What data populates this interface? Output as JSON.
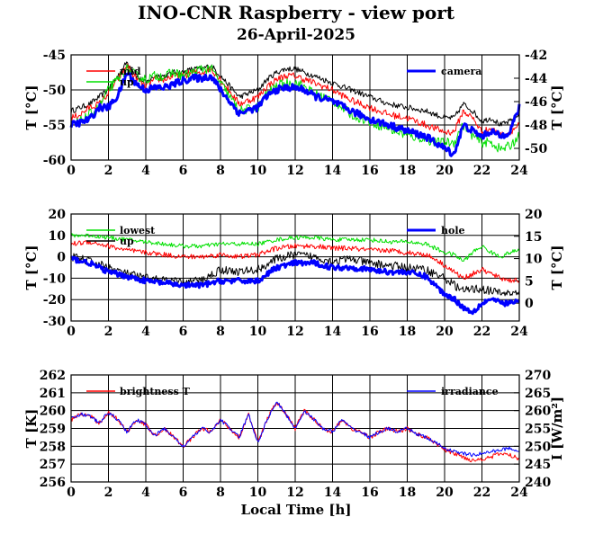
{
  "chart_data": {
    "type": "line",
    "title": "INO-CNR Raspberry - view port",
    "subtitle": "26-April-2025",
    "xlabel": "Local Time [h]",
    "panels": [
      {
        "id": "panel-1",
        "ylabel_left": "T [°C]",
        "ylabel_right": "T [°C]",
        "xlim": [
          0,
          24
        ],
        "ylim_left": [
          -60,
          -45
        ],
        "ylim_right": [
          -51,
          -42
        ],
        "xticks": [
          "0",
          "2",
          "4",
          "6",
          "8",
          "10",
          "12",
          "14",
          "16",
          "18",
          "20",
          "22",
          "24"
        ],
        "yticks_left": [
          "-60",
          "-55",
          "-50",
          "-45"
        ],
        "yticks_right": [
          "-50",
          "-48",
          "-46",
          "-44",
          "-42"
        ],
        "legend_left": [
          "mid",
          "up"
        ],
        "legend_right": [
          "camera"
        ],
        "series": [
          {
            "name": "",
            "axis": "left",
            "color": "#000000",
            "noise": 0.4,
            "x": [
              0,
              0.5,
              1,
              1.5,
              2,
              2.5,
              3,
              3.5,
              4,
              4.5,
              5,
              5.5,
              6,
              6.5,
              7,
              7.5,
              8,
              9,
              10,
              10.5,
              11,
              11.5,
              12,
              12.5,
              13,
              14,
              15,
              16,
              17,
              18,
              19,
              19.5,
              20,
              20.5,
              21,
              21.5,
              22,
              22.5,
              23,
              23.5,
              24
            ],
            "y": [
              -53,
              -52.5,
              -52,
              -51,
              -50,
              -48,
              -46,
              -48,
              -49,
              -48,
              -48,
              -47.5,
              -47.5,
              -47,
              -47,
              -46.5,
              -48,
              -51,
              -50,
              -48.5,
              -47.5,
              -47,
              -47,
              -47.5,
              -48,
              -49,
              -50,
              -51,
              -52,
              -52.5,
              -53,
              -53.5,
              -54,
              -54,
              -52,
              -53,
              -54.5,
              -54,
              -55,
              -54.5,
              -53.5
            ]
          },
          {
            "name": "mid",
            "axis": "left",
            "color": "#ff0000",
            "noise": 0.5,
            "x": [
              0,
              0.5,
              1,
              1.5,
              2,
              2.5,
              3,
              3.5,
              4,
              4.5,
              5,
              5.5,
              6,
              6.5,
              7,
              7.5,
              8,
              9,
              10,
              10.5,
              11,
              11.5,
              12,
              12.5,
              13,
              14,
              15,
              16,
              17,
              18,
              19,
              19.5,
              20,
              20.5,
              21,
              21.5,
              22,
              22.5,
              23,
              23.5,
              24
            ],
            "y": [
              -54,
              -53.5,
              -52.5,
              -52,
              -50.5,
              -48.5,
              -46.5,
              -48.5,
              -49.5,
              -48.5,
              -48.5,
              -48,
              -48,
              -47.5,
              -47.5,
              -47,
              -48.5,
              -52,
              -51,
              -49.5,
              -48.5,
              -48,
              -48,
              -48.5,
              -49,
              -50,
              -51.5,
              -52.5,
              -53.5,
              -54,
              -55,
              -55.5,
              -56,
              -56,
              -53,
              -54,
              -56,
              -55.5,
              -56.5,
              -56,
              -55
            ]
          },
          {
            "name": "up",
            "axis": "left",
            "color": "#00e000",
            "noise": 0.7,
            "x": [
              0,
              0.5,
              1,
              1.5,
              2,
              2.5,
              3,
              3.5,
              4,
              4.5,
              5,
              5.5,
              6,
              6.5,
              7,
              7.5,
              8,
              9,
              10,
              10.5,
              11,
              11.5,
              12,
              12.5,
              13,
              14,
              15,
              16,
              17,
              18,
              19,
              19.5,
              20,
              20.5,
              21,
              21.5,
              22,
              22.5,
              23,
              23.5,
              24
            ],
            "y": [
              -55,
              -54.5,
              -53.5,
              -52.5,
              -50,
              -48.5,
              -47,
              -48,
              -48.5,
              -48,
              -48,
              -47.5,
              -48,
              -47.5,
              -47,
              -47,
              -49,
              -53,
              -52.5,
              -50.5,
              -49.5,
              -49,
              -49,
              -49.5,
              -50.5,
              -51.5,
              -53.5,
              -54.5,
              -55.5,
              -56.5,
              -57,
              -57.5,
              -57.5,
              -57.5,
              -55,
              -56.5,
              -57.5,
              -57.5,
              -58.5,
              -58,
              -56.5
            ]
          },
          {
            "name": "camera",
            "axis": "right",
            "color": "#0000ff",
            "noise": 0.3,
            "width": 3,
            "x": [
              0,
              0.5,
              1,
              1.5,
              2,
              2.5,
              3,
              3.5,
              4,
              4.5,
              5,
              5.5,
              6,
              6.5,
              7,
              7.5,
              8,
              9,
              10,
              10.5,
              11,
              11.5,
              12,
              12.5,
              13,
              14,
              15,
              16,
              17,
              18,
              19,
              19.5,
              20,
              20.5,
              21,
              21.5,
              22,
              22.5,
              23,
              23.5,
              24
            ],
            "y": [
              -48,
              -47.8,
              -47.5,
              -46.5,
              -46.5,
              -45.5,
              -43.5,
              -44.5,
              -45,
              -44.8,
              -44.8,
              -44.5,
              -44.2,
              -44,
              -44,
              -43.8,
              -45,
              -47,
              -46.5,
              -45.5,
              -45,
              -44.8,
              -44.8,
              -45,
              -45.5,
              -46,
              -46.8,
              -47.5,
              -48,
              -48.5,
              -49,
              -49.5,
              -50,
              -50.5,
              -48,
              -48.5,
              -49,
              -48.5,
              -49,
              -48.5,
              -46.5
            ]
          }
        ]
      },
      {
        "id": "panel-2",
        "ylabel_left": "T [°C]",
        "ylabel_right": "T [°C]",
        "xlim": [
          0,
          24
        ],
        "ylim_left": [
          -30,
          20
        ],
        "ylim_right": [
          -4,
          20
        ],
        "xticks": [
          "0",
          "2",
          "4",
          "6",
          "8",
          "10",
          "12",
          "14",
          "16",
          "18",
          "20",
          "22",
          "24"
        ],
        "yticks_left": [
          "-30",
          "-20",
          "-10",
          "0",
          "10",
          "20"
        ],
        "yticks_right": [
          "0",
          "5",
          "10",
          "15",
          "20"
        ],
        "legend_left": [
          "lowest",
          "up"
        ],
        "legend_right": [
          "hole"
        ],
        "series": [
          {
            "name": "lowest",
            "axis": "left",
            "color": "#00e000",
            "noise": 1.0,
            "x": [
              0,
              1,
              2,
              3,
              4,
              5,
              6,
              7,
              8,
              9,
              10,
              11,
              12,
              13,
              14,
              15,
              16,
              17,
              18,
              19,
              19.5,
              20,
              20.5,
              21,
              21.5,
              22,
              22.5,
              23,
              23.5,
              24
            ],
            "y": [
              10,
              10,
              9,
              8,
              7,
              6,
              5,
              5,
              6,
              6,
              6,
              8,
              9,
              9,
              8,
              8,
              8,
              7,
              7,
              6,
              4,
              2,
              1,
              -2,
              2,
              5,
              2,
              0,
              2,
              3
            ]
          },
          {
            "name": "",
            "axis": "left",
            "color": "#ff0000",
            "noise": 1.2,
            "x": [
              0,
              1,
              2,
              3,
              4,
              5,
              6,
              7,
              8,
              9,
              10,
              11,
              12,
              13,
              14,
              15,
              16,
              17,
              18,
              19,
              19.5,
              20,
              20.5,
              21,
              21.5,
              22,
              22.5,
              23,
              23.5,
              24
            ],
            "y": [
              6,
              7,
              5,
              3,
              2,
              1,
              0,
              0,
              1,
              0,
              1,
              4,
              5,
              5,
              4,
              4,
              3,
              3,
              2,
              1,
              -1,
              -4,
              -7,
              -10,
              -8,
              -6,
              -8,
              -10,
              -11,
              -11
            ]
          },
          {
            "name": "up",
            "axis": "left",
            "color": "#000000",
            "noise": 2.0,
            "x": [
              0,
              1,
              2,
              3,
              4,
              5,
              6,
              7,
              8,
              9,
              10,
              11,
              12,
              13,
              14,
              15,
              16,
              17,
              18,
              19,
              19.5,
              20,
              20.5,
              21,
              21.5,
              22,
              22.5,
              23,
              23.5,
              24
            ],
            "y": [
              0,
              -2,
              -5,
              -8,
              -10,
              -11,
              -12,
              -11,
              -6,
              -7,
              -6,
              -1,
              1,
              0,
              -2,
              -1,
              -3,
              -4,
              -5,
              -6,
              -8,
              -10,
              -13,
              -16,
              -15,
              -15,
              -16,
              -17,
              -17,
              -17
            ]
          },
          {
            "name": "hole",
            "axis": "right",
            "color": "#0000ff",
            "noise": 0.6,
            "width": 3,
            "x": [
              0,
              1,
              2,
              3,
              4,
              5,
              6,
              7,
              8,
              9,
              10,
              11,
              12,
              13,
              14,
              15,
              16,
              17,
              18,
              19,
              19.5,
              20,
              20.5,
              21,
              21.5,
              22,
              22.5,
              23,
              23.5,
              24
            ],
            "y": [
              10,
              9,
              7,
              6,
              5,
              4.5,
              4,
              4,
              5,
              5,
              5,
              8,
              9,
              9,
              8,
              8,
              7.5,
              7,
              7,
              6,
              4,
              2,
              1,
              -1,
              -2,
              0,
              1,
              0,
              0,
              0.5
            ]
          }
        ]
      },
      {
        "id": "panel-3",
        "ylabel_left": "T [K]",
        "ylabel_right": "I [W/m²]",
        "xlim": [
          0,
          24
        ],
        "ylim_left": [
          256,
          262
        ],
        "ylim_right": [
          240,
          270
        ],
        "xticks": [
          "0",
          "2",
          "4",
          "6",
          "8",
          "10",
          "12",
          "14",
          "16",
          "18",
          "20",
          "22",
          "24"
        ],
        "yticks_left": [
          "256",
          "257",
          "258",
          "259",
          "260",
          "261",
          "262"
        ],
        "yticks_right": [
          "240",
          "245",
          "250",
          "255",
          "260",
          "265",
          "270"
        ],
        "legend_left": [
          "brightness T"
        ],
        "legend_right": [
          "irradiance"
        ],
        "series": [
          {
            "name": "brightness T",
            "axis": "left",
            "color": "#ff0000",
            "noise": 0.12,
            "x": [
              0,
              0.5,
              1,
              1.5,
              2,
              2.5,
              3,
              3.5,
              4,
              4.5,
              5,
              5.5,
              6,
              6.5,
              7,
              7.5,
              8,
              8.5,
              9,
              9.5,
              10,
              10.5,
              11,
              11.5,
              12,
              12.5,
              13,
              13.5,
              14,
              14.5,
              15,
              15.5,
              16,
              16.5,
              17,
              17.5,
              18,
              18.5,
              19,
              19.5,
              20,
              20.5,
              21,
              21.5,
              22,
              22.5,
              23,
              23.5,
              24
            ],
            "y": [
              259.5,
              259.8,
              259.7,
              259.3,
              259.9,
              259.5,
              258.8,
              259.5,
              259.2,
              258.6,
              259.0,
              258.5,
              258.0,
              258.5,
              259.0,
              258.8,
              259.5,
              259.0,
              258.5,
              259.8,
              258.2,
              259.5,
              260.5,
              259.8,
              259.0,
              260.0,
              259.5,
              259.0,
              258.8,
              259.5,
              259.0,
              258.8,
              258.5,
              258.8,
              259.0,
              258.8,
              259.0,
              258.7,
              258.5,
              258.2,
              257.8,
              257.6,
              257.4,
              257.2,
              257.3,
              257.4,
              257.6,
              257.5,
              257.3
            ]
          },
          {
            "name": "irradiance",
            "axis": "right",
            "color": "#0000ff",
            "noise": 0.5,
            "x": [
              0,
              0.5,
              1,
              1.5,
              2,
              2.5,
              3,
              3.5,
              4,
              4.5,
              5,
              5.5,
              6,
              6.5,
              7,
              7.5,
              8,
              8.5,
              9,
              9.5,
              10,
              10.5,
              11,
              11.5,
              12,
              12.5,
              13,
              13.5,
              14,
              14.5,
              15,
              15.5,
              16,
              16.5,
              17,
              17.5,
              18,
              18.5,
              19,
              19.5,
              20,
              20.5,
              21,
              21.5,
              22,
              22.5,
              23,
              23.5,
              24
            ],
            "y": [
              258,
              259,
              258.5,
              256.5,
              259.5,
              257.5,
              254,
              257.5,
              256,
              253,
              255,
              252.5,
              250,
              252.5,
              255,
              254,
              257.5,
              255,
              252.5,
              259,
              251,
              257.5,
              262.5,
              259,
              255,
              260,
              257.5,
              255,
              254,
              257.5,
              255,
              254,
              252.5,
              254,
              255,
              254,
              255,
              253.5,
              252.5,
              251,
              249.5,
              248.5,
              248,
              247.5,
              248,
              248.5,
              249,
              249.5,
              248.5
            ]
          }
        ]
      }
    ]
  }
}
